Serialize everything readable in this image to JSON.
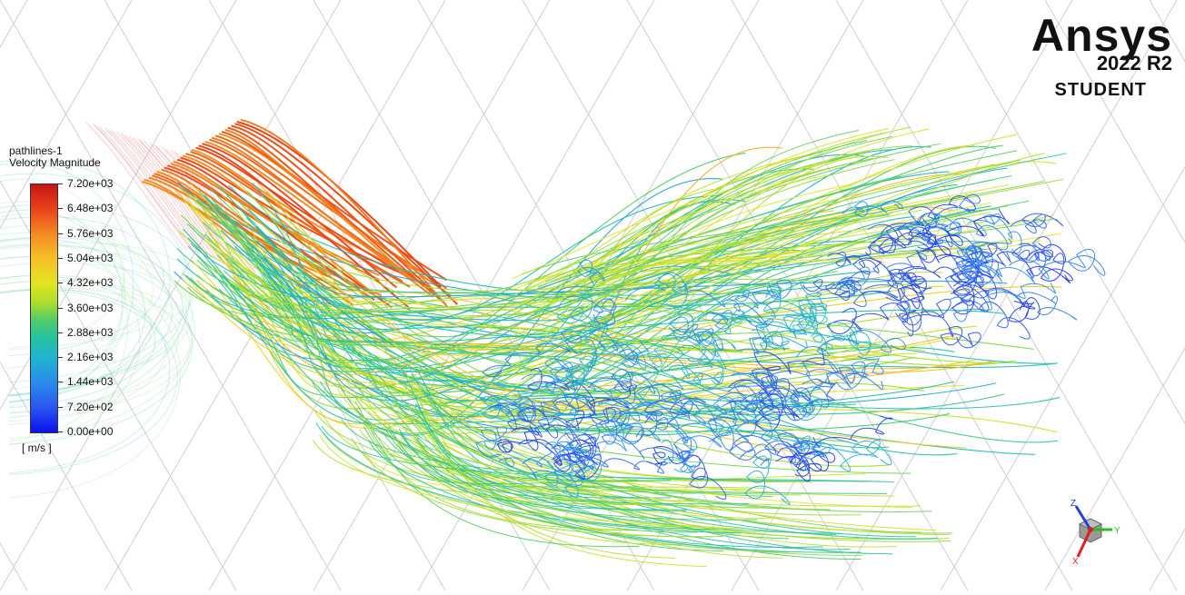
{
  "legend": {
    "title": "pathlines-1",
    "variable": "Velocity Magnitude",
    "ticks": [
      "7.20e+03",
      "6.48e+03",
      "5.76e+03",
      "5.04e+03",
      "4.32e+03",
      "3.60e+03",
      "2.88e+03",
      "2.16e+03",
      "1.44e+03",
      "7.20e+02",
      "0.00e+00"
    ],
    "units": "[ m/s ]",
    "range": [
      0,
      7200
    ]
  },
  "brand": {
    "name": "Ansys",
    "version": "2022 R2",
    "edition": "STUDENT"
  },
  "triad": {
    "x_label": "X",
    "y_label": "Y",
    "z_label": "Z"
  },
  "colors": {
    "x_axis": "#e02020",
    "y_axis": "#20c020",
    "z_axis": "#2040e0",
    "mesh": "#cfcfcf",
    "background": "#ffffff"
  }
}
